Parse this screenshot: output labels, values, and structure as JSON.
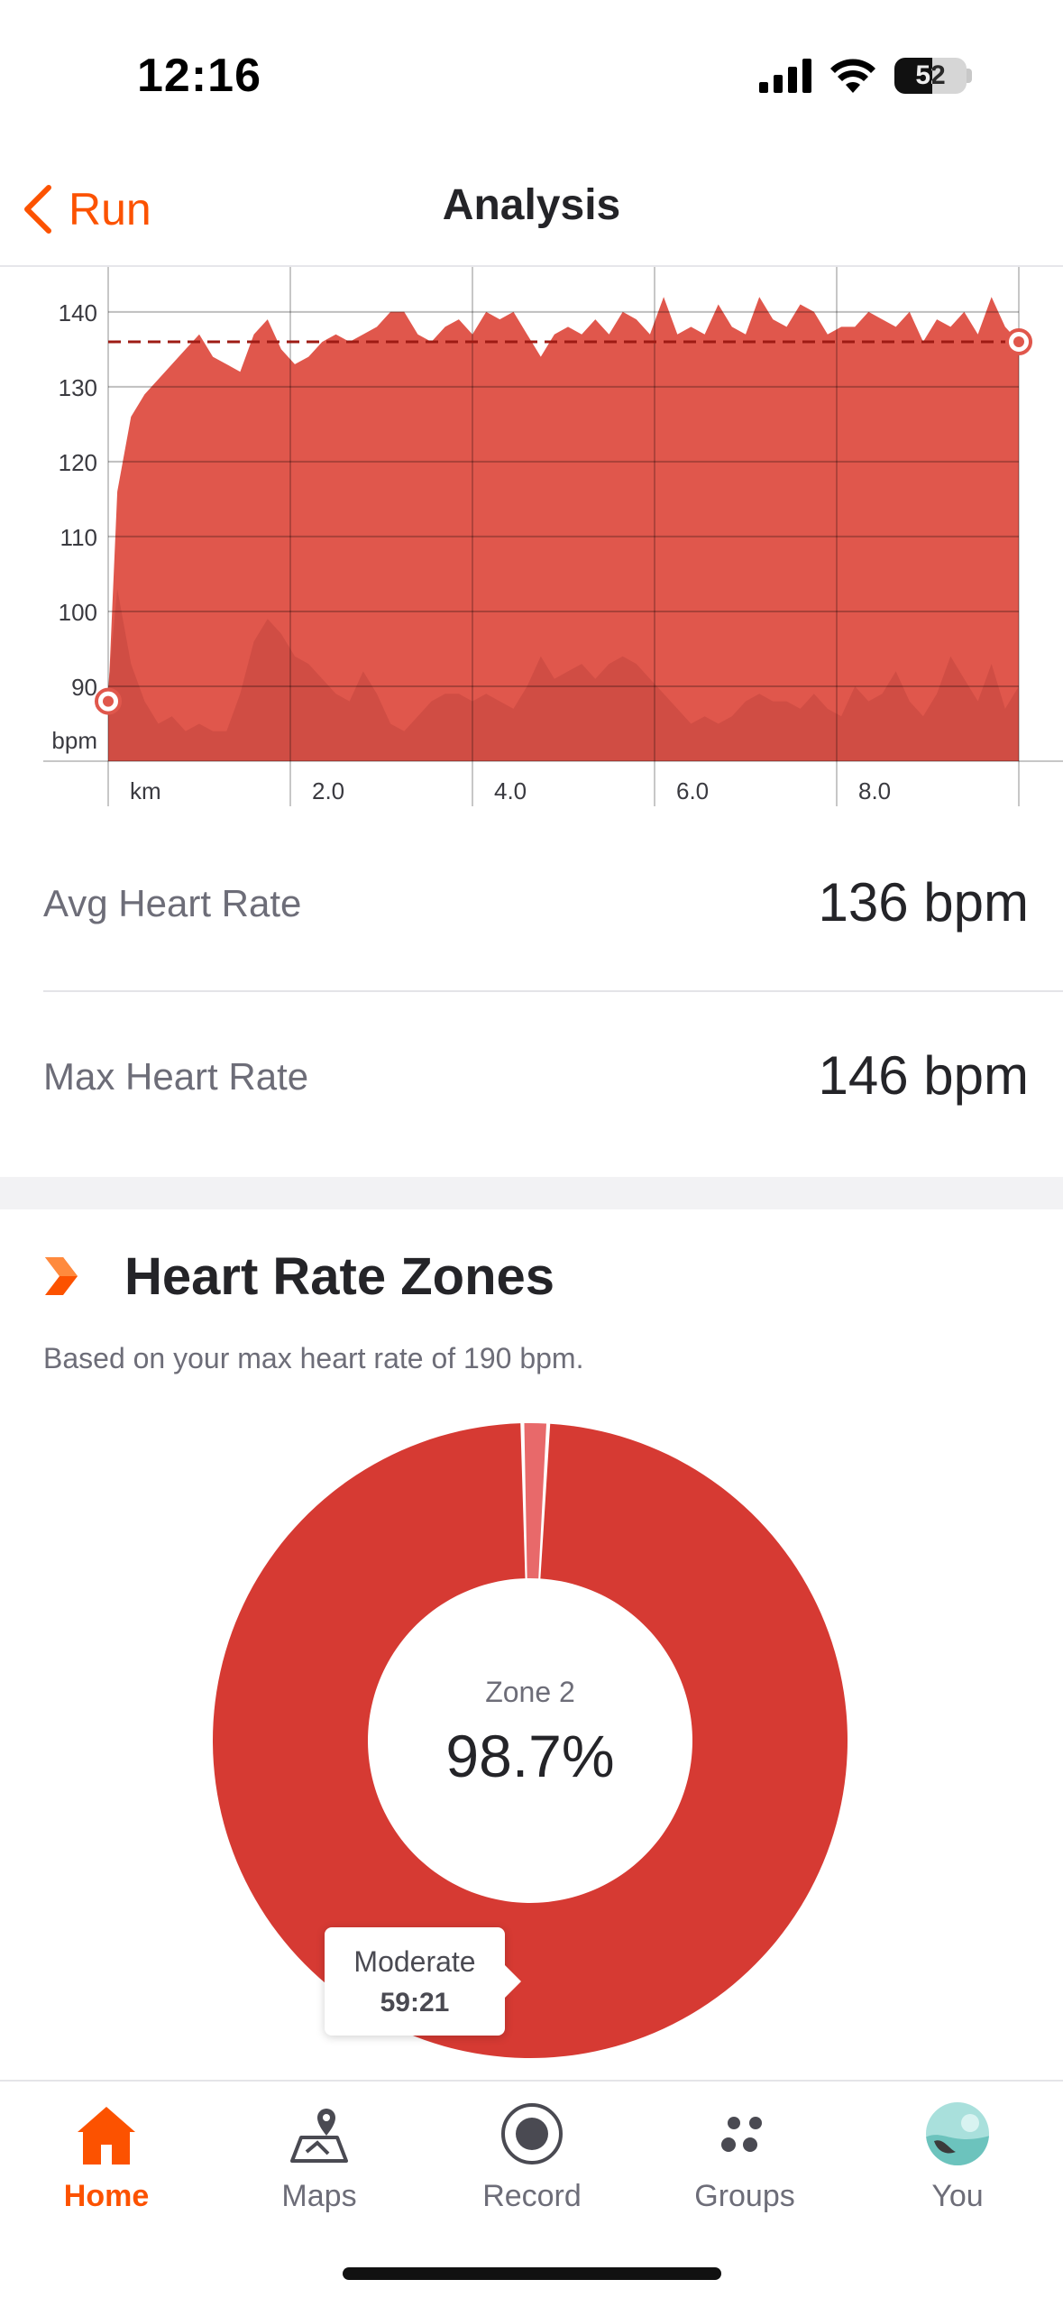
{
  "status_bar": {
    "time": "12:16",
    "battery": "52",
    "battery_level": 0.52
  },
  "header": {
    "back_label": "Run",
    "title": "Analysis"
  },
  "chart_data": {
    "type": "area",
    "x": [
      0,
      0.1,
      0.25,
      0.4,
      0.55,
      0.7,
      0.85,
      1.0,
      1.15,
      1.3,
      1.45,
      1.6,
      1.75,
      1.9,
      2.05,
      2.2,
      2.35,
      2.5,
      2.65,
      2.8,
      2.95,
      3.1,
      3.25,
      3.4,
      3.55,
      3.7,
      3.85,
      4.0,
      4.15,
      4.3,
      4.45,
      4.6,
      4.75,
      4.9,
      5.05,
      5.2,
      5.35,
      5.5,
      5.65,
      5.8,
      5.95,
      6.1,
      6.25,
      6.4,
      6.55,
      6.7,
      6.85,
      7.0,
      7.15,
      7.3,
      7.45,
      7.6,
      7.75,
      7.9,
      8.05,
      8.2,
      8.35,
      8.5,
      8.65,
      8.8,
      8.95,
      9.1,
      9.25,
      9.4,
      9.55,
      9.7,
      9.85,
      10.0
    ],
    "series": [
      {
        "values": [
          88,
          116,
          126,
          129,
          131,
          133,
          135,
          137,
          134,
          133,
          132,
          137,
          139,
          135,
          133,
          134,
          136,
          137,
          136,
          137,
          138,
          140,
          140,
          137,
          136,
          138,
          139,
          137,
          140,
          139,
          140,
          137,
          134,
          137,
          138,
          137,
          139,
          137,
          140,
          139,
          137,
          142,
          137,
          138,
          137,
          141,
          138,
          137,
          142,
          139,
          138,
          141,
          140,
          137,
          138,
          138,
          140,
          139,
          138,
          140,
          136,
          139,
          138,
          140,
          137,
          142,
          138,
          136
        ],
        "min": [
          90,
          103,
          93,
          88,
          85,
          86,
          84,
          85,
          84,
          84,
          89,
          96,
          99,
          97,
          94,
          93,
          91,
          89,
          88,
          92,
          89,
          85,
          84,
          86,
          88,
          89,
          89,
          88,
          89,
          88,
          87,
          90,
          94,
          91,
          92,
          93,
          91,
          93,
          94,
          93,
          91,
          89,
          87,
          85,
          86,
          85,
          86,
          88,
          89,
          88,
          88,
          87,
          89,
          87,
          86,
          90,
          88,
          89,
          92,
          88,
          86,
          89,
          94,
          91,
          88,
          93,
          87,
          90
        ]
      }
    ],
    "avg_line": 136,
    "xticks": [
      "km",
      "2.0",
      "4.0",
      "6.0",
      "8.0"
    ],
    "xtick_values": [
      0,
      2,
      4,
      6,
      8
    ],
    "yticks": [
      90,
      100,
      110,
      120,
      130,
      140
    ],
    "yunit": "bpm",
    "xlim": [
      0,
      10
    ],
    "ylim": [
      80,
      146
    ],
    "grid": true,
    "colors": {
      "fill": "#e0574c",
      "inner": "#cc4b43",
      "avg_line": "#9e1b14"
    }
  },
  "stats": {
    "avg_label": "Avg Heart Rate",
    "avg_value": "136 bpm",
    "max_label": "Max Heart Rate",
    "max_value": "146 bpm"
  },
  "zones": {
    "title": "Heart Rate Zones",
    "subtitle": "Based on your max heart rate of 190 bpm.",
    "center_zone": "Zone 2",
    "center_pct": "98.7%",
    "tooltip_label": "Moderate",
    "tooltip_value": "59:21",
    "slices": [
      {
        "value": 98.7,
        "color": "#d63a33"
      },
      {
        "value": 1.3,
        "color": "#e8696a"
      }
    ]
  },
  "tabs": [
    {
      "label": "Home",
      "icon": "home-icon",
      "active": true
    },
    {
      "label": "Maps",
      "icon": "maps-icon",
      "active": false
    },
    {
      "label": "Record",
      "icon": "record-icon",
      "active": false
    },
    {
      "label": "Groups",
      "icon": "groups-icon",
      "active": false
    },
    {
      "label": "You",
      "icon": "avatar",
      "active": false
    }
  ],
  "accent": "#fc5200"
}
